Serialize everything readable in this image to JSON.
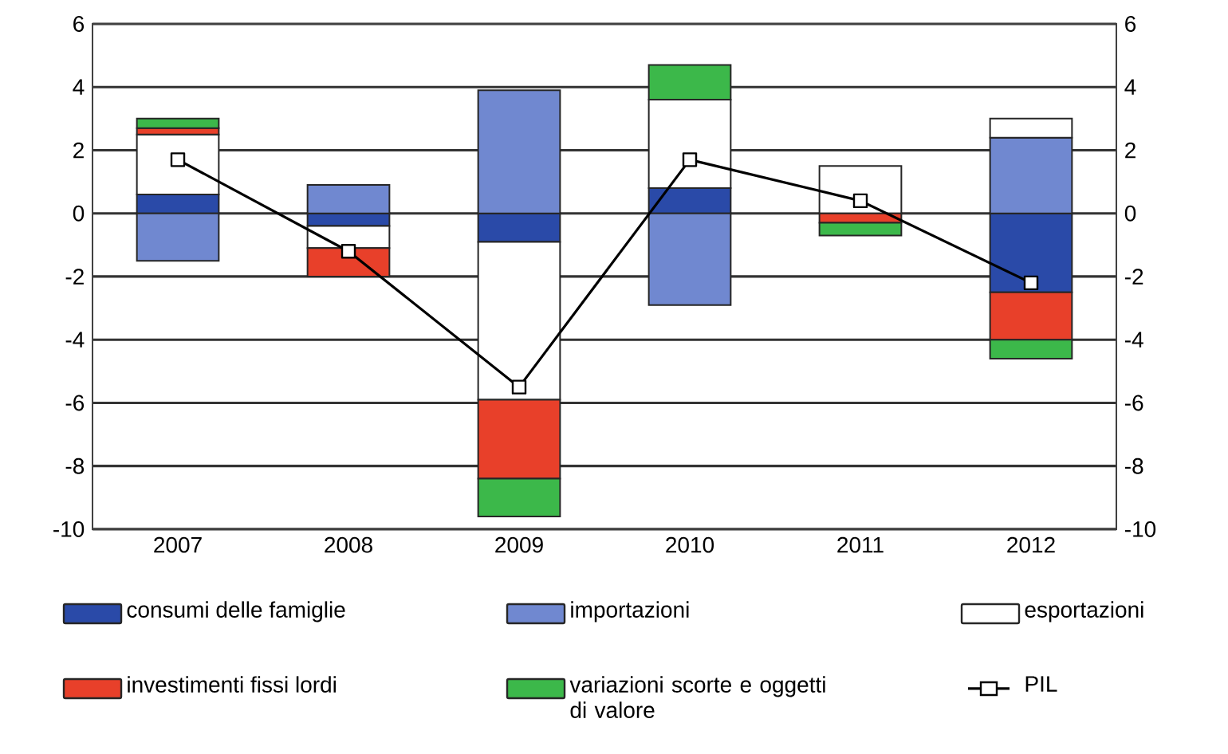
{
  "chart_data": {
    "type": "bar",
    "stacked": true,
    "categories": [
      "2007",
      "2008",
      "2009",
      "2010",
      "2011",
      "2012"
    ],
    "series": [
      {
        "name": "consumi delle famiglie",
        "color": "#2a4aa8",
        "values": [
          0.6,
          -0.4,
          -0.9,
          0.8,
          null,
          -2.5
        ]
      },
      {
        "name": "importazioni",
        "color": "#7088d0",
        "values": [
          -1.5,
          0.9,
          3.9,
          -2.9,
          0,
          2.4
        ]
      },
      {
        "name": "esportazioni",
        "color": "#ffffff",
        "values": [
          1.9,
          -0.7,
          -5.0,
          2.8,
          1.5,
          0.6
        ]
      },
      {
        "name": "investimenti fissi lordi",
        "color": "#e8402a",
        "values": [
          0.2,
          -0.9,
          -2.5,
          0,
          -0.3,
          -1.5
        ]
      },
      {
        "name": "variazioni scorte e oggetti di valore",
        "color": "#3cb84a",
        "values": [
          0.3,
          0,
          -1.2,
          1.1,
          -0.4,
          -0.6
        ]
      },
      {
        "name": "PIL",
        "type": "line",
        "color": "#000000",
        "marker": "square",
        "values": [
          1.7,
          -1.2,
          -5.5,
          1.7,
          0.4,
          -2.2
        ]
      }
    ],
    "ylim": [
      -10,
      6
    ],
    "yticks": [
      -10,
      -8,
      -6,
      -4,
      -2,
      0,
      2,
      4,
      6
    ],
    "y2lim": [
      -10,
      6
    ],
    "y2ticks": [
      -10,
      -8,
      -6,
      -4,
      -2,
      0,
      2,
      4,
      6
    ],
    "grid": "y",
    "legend": "bottom"
  }
}
